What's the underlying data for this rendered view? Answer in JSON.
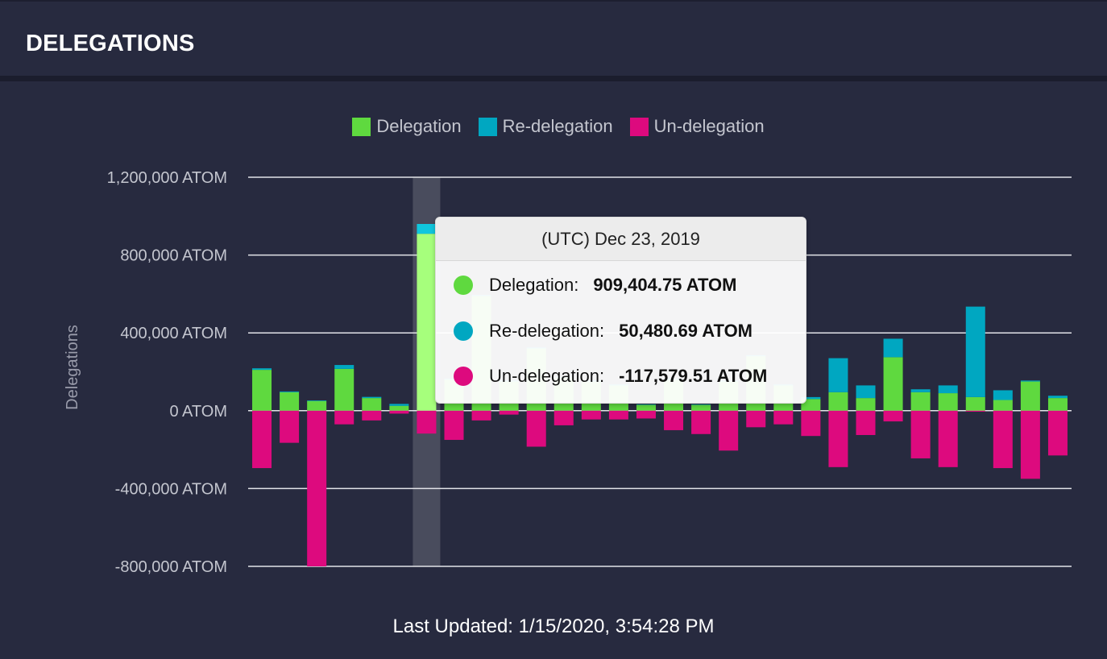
{
  "header": {
    "title": "DELEGATIONS"
  },
  "legend": [
    {
      "label": "Delegation",
      "color": "#5fd93f"
    },
    {
      "label": "Re-delegation",
      "color": "#00a7c1"
    },
    {
      "label": "Un-delegation",
      "color": "#dd0a7e"
    }
  ],
  "tooltip": {
    "date": "(UTC) Dec 23, 2019",
    "rows": [
      {
        "name": "Delegation:",
        "value": "909,404.75 ATOM",
        "color": "#5fd93f"
      },
      {
        "name": "Re-delegation:",
        "value": "50,480.69 ATOM",
        "color": "#00a7c1"
      },
      {
        "name": "Un-delegation:",
        "value": "-117,579.51 ATOM",
        "color": "#dd0a7e"
      }
    ]
  },
  "footer": {
    "last_updated": "Last Updated: 1/15/2020, 3:54:28 PM"
  },
  "chart_data": {
    "type": "bar",
    "stacked": true,
    "ylabel": "Delegations",
    "ylim": [
      -800000,
      1200000
    ],
    "yticks": [
      1200000,
      800000,
      400000,
      0,
      -400000,
      -800000
    ],
    "ytick_labels": [
      "1,200,000 ATOM",
      "800,000 ATOM",
      "400,000 ATOM",
      "0 ATOM",
      "-400,000 ATOM",
      "-800,000 ATOM"
    ],
    "highlight_index": 6,
    "series": [
      {
        "name": "Delegation",
        "color": "#5fd93f",
        "values": [
          210000,
          95000,
          50000,
          215000,
          65000,
          25000,
          909404.75,
          160000,
          590000,
          150000,
          320000,
          170000,
          150000,
          130000,
          30000,
          160000,
          30000,
          150000,
          280000,
          130000,
          60000,
          95000,
          65000,
          275000,
          95000,
          90000,
          70000,
          55000,
          150000,
          65000
        ]
      },
      {
        "name": "Re-delegation",
        "color": "#00a7c1",
        "values": [
          8000,
          4000,
          3000,
          20000,
          6000,
          10000,
          50480.69,
          5000,
          5000,
          5000,
          5000,
          5000,
          5000,
          5000,
          3000,
          5000,
          3000,
          5000,
          5000,
          5000,
          10000,
          175000,
          65000,
          95000,
          15000,
          40000,
          465000,
          50000,
          5000,
          12000
        ]
      },
      {
        "name": "Un-delegation",
        "color": "#dd0a7e",
        "values": [
          -295000,
          -165000,
          -800000,
          -70000,
          -50000,
          -15000,
          -117579.51,
          -150000,
          -50000,
          -20000,
          -185000,
          -75000,
          -45000,
          -45000,
          -40000,
          -100000,
          -120000,
          -205000,
          -85000,
          -70000,
          -130000,
          -290000,
          -125000,
          -55000,
          -245000,
          -290000,
          -5000,
          -295000,
          -350000,
          -230000
        ]
      }
    ]
  }
}
